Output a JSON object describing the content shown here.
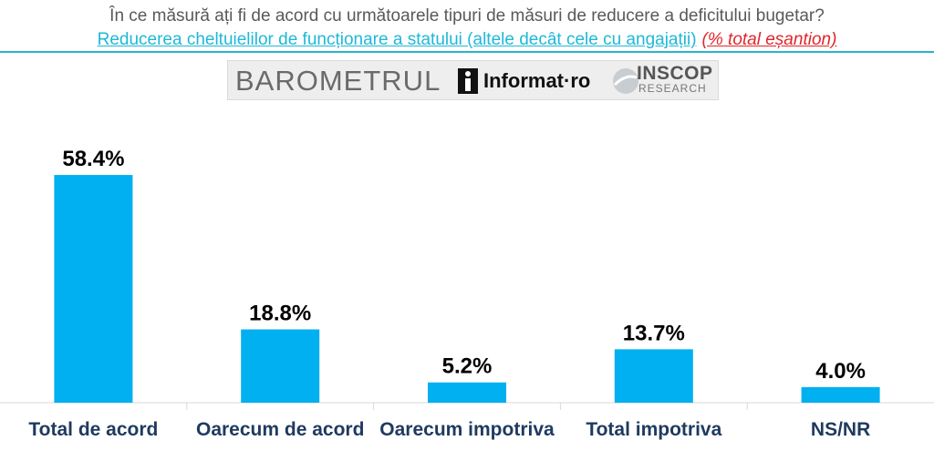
{
  "header": {
    "question": "În ce măsură ați fi de acord cu următoarele tipuri de măsuri de reducere a deficitului bugetar?",
    "subtitle_main": "Reducerea cheltuielilor de funcționare a statului (altele decât cele cu angajații)",
    "subtitle_note": "(% total eșantion)"
  },
  "logos": {
    "barometrul": "BAROMETRUL",
    "informat": "Informat·ro",
    "inscop": "INSCOP",
    "research": "RESEARCH"
  },
  "colors": {
    "bar": "#00b0f0",
    "title": "#595959",
    "subtitle": "#1fb8d8",
    "note": "#e0262b",
    "axis": "#d9d9d9"
  },
  "chart_data": {
    "type": "bar",
    "categories": [
      "Total de acord",
      "Oarecum de acord",
      "Oarecum impotriva",
      "Total impotriva",
      "NS/NR"
    ],
    "values": [
      58.4,
      18.8,
      5.2,
      13.7,
      4.0
    ],
    "data_labels": [
      "58.4%",
      "18.8%",
      "5.2%",
      "13.7%",
      "4.0%"
    ],
    "unit": "%",
    "ylim": [
      0,
      60
    ],
    "grid": false,
    "legend": "none",
    "xlabel": "",
    "ylabel": ""
  }
}
